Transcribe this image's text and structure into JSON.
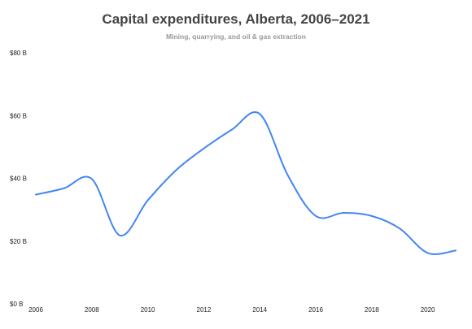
{
  "chart_data": {
    "type": "line",
    "title": "Capital expenditures, Alberta, 2006–2021",
    "subtitle": "Mining, quarrying, and oil & gas extraction",
    "xlabel": "",
    "ylabel": "",
    "x": [
      2006,
      2007,
      2008,
      2009,
      2010,
      2011,
      2012,
      2013,
      2014,
      2015,
      2016,
      2017,
      2018,
      2019,
      2020,
      2021
    ],
    "series": [
      {
        "values": [
          34.8,
          36.8,
          39.8,
          21.8,
          33.0,
          42.5,
          49.5,
          55.5,
          60.5,
          41.0,
          28.0,
          29.0,
          28.0,
          24.0,
          16.2,
          17.0
        ],
        "color": "#4285f4"
      }
    ],
    "xlim": [
      2006,
      2021
    ],
    "ylim": [
      0,
      80
    ],
    "x_ticks": [
      2006,
      2008,
      2010,
      2012,
      2014,
      2016,
      2018,
      2020
    ],
    "x_tick_labels": [
      "2006",
      "2008",
      "2010",
      "2012",
      "2014",
      "2016",
      "2018",
      "2020"
    ],
    "y_ticks": [
      0,
      20,
      40,
      60,
      80
    ],
    "y_tick_labels": [
      "$0 B",
      "$20 B",
      "$40 B",
      "$60 B",
      "$80 B"
    ],
    "grid": false,
    "legend": "none"
  }
}
